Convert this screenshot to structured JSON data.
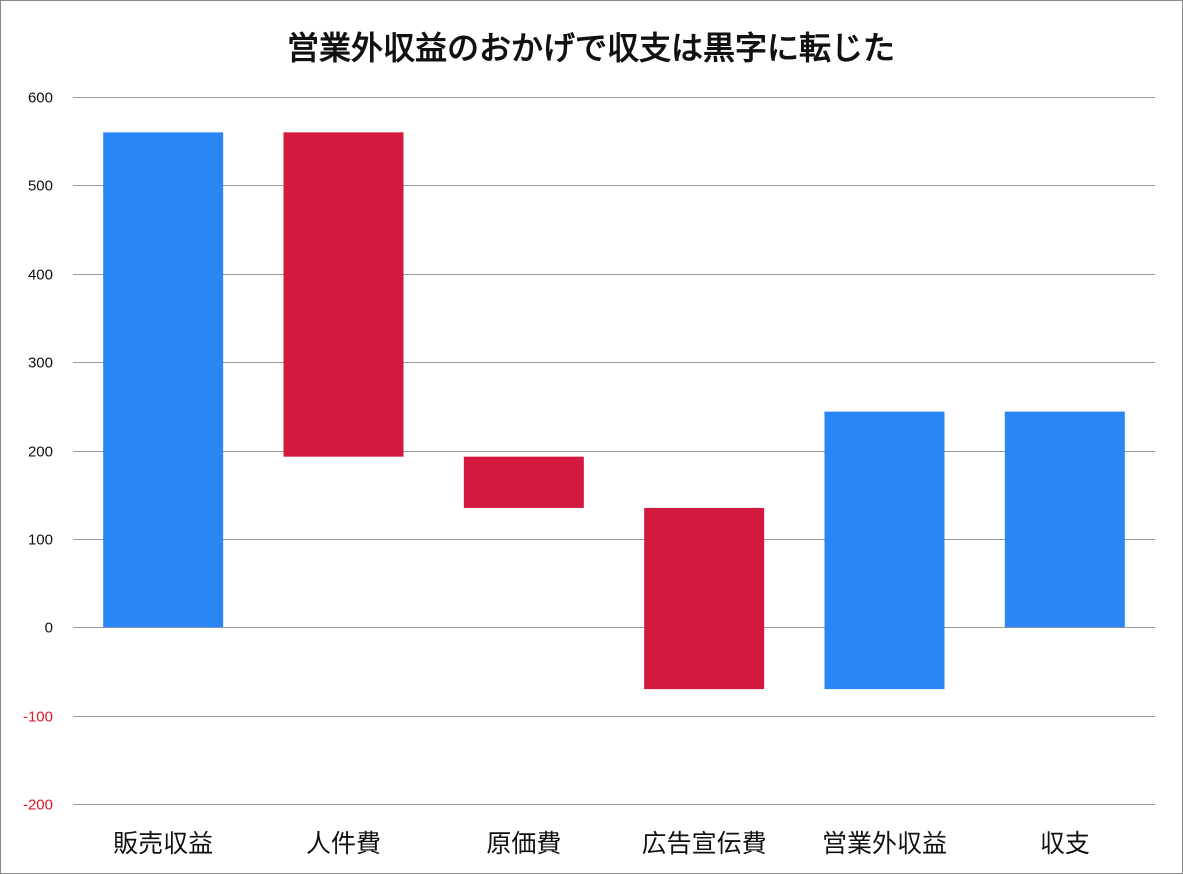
{
  "chart_data": {
    "type": "bar",
    "subtype": "waterfall",
    "title": "営業外収益のおかげで収支は黒字に転じた",
    "xlabel": "",
    "ylabel": "",
    "ylim": [
      -200,
      600
    ],
    "yticks": [
      "600",
      "500",
      "400",
      "300",
      "200",
      "100",
      "0",
      "-100",
      "-200"
    ],
    "grid": true,
    "legend": "none",
    "categories": [
      "販売収益",
      "人件費",
      "原価費",
      "広告宣伝費",
      "営業外収益",
      "収支"
    ],
    "bars": [
      {
        "category": "販売収益",
        "start": 0,
        "end": 560,
        "kind": "increase"
      },
      {
        "category": "人件費",
        "start": 560,
        "end": 193,
        "kind": "decrease"
      },
      {
        "category": "原価費",
        "start": 193,
        "end": 135,
        "kind": "decrease"
      },
      {
        "category": "広告宣伝費",
        "start": 135,
        "end": -70,
        "kind": "decrease"
      },
      {
        "category": "営業外収益",
        "start": -70,
        "end": 244,
        "kind": "increase"
      },
      {
        "category": "収支",
        "start": 0,
        "end": 244,
        "kind": "total"
      }
    ],
    "colors": {
      "increase": "#2b86f5",
      "decrease": "#d31a3e",
      "total": "#2b86f5",
      "negative_tick": "#e0191e",
      "tick": "#111111"
    }
  }
}
